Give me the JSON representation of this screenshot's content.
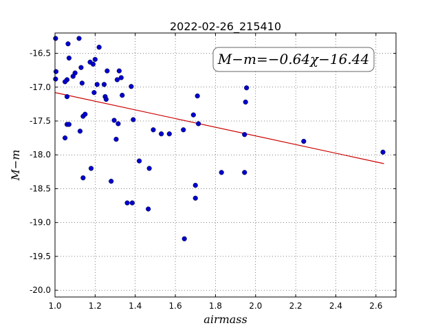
{
  "chart_data": {
    "type": "scatter",
    "title": "2022-02-26_215410",
    "xlabel": "airmass",
    "ylabel": "M−m",
    "xlim": [
      1.0,
      2.7
    ],
    "ylim": [
      -16.2,
      -20.1
    ],
    "y_inverted": true,
    "grid": true,
    "x_ticks": [
      "1.0",
      "1.2",
      "1.4",
      "1.6",
      "1.8",
      "2.0",
      "2.2",
      "2.4",
      "2.6"
    ],
    "y_ticks": [
      "-16.5",
      "-17.0",
      "-17.5",
      "-18.0",
      "-18.5",
      "-19.0",
      "-19.5",
      "-20.0"
    ],
    "annotation": "M−m=−0.64χ−16.44",
    "annotation_placement": "top-right",
    "fit_line": {
      "slope": -0.64,
      "intercept": -16.44,
      "x_range": [
        1.0,
        2.64
      ],
      "color": "#cc0000"
    },
    "point_color": "#0000cc",
    "points": [
      [
        1.003,
        -16.28
      ],
      [
        1.005,
        -16.77
      ],
      [
        1.003,
        -16.88
      ],
      [
        1.06,
        -16.89
      ],
      [
        1.05,
        -16.92
      ],
      [
        1.07,
        -16.57
      ],
      [
        1.065,
        -16.36
      ],
      [
        1.09,
        -16.84
      ],
      [
        1.1,
        -16.79
      ],
      [
        1.12,
        -16.28
      ],
      [
        1.13,
        -16.71
      ],
      [
        1.135,
        -16.94
      ],
      [
        1.06,
        -17.14
      ],
      [
        1.05,
        -17.75
      ],
      [
        1.06,
        -17.55
      ],
      [
        1.07,
        -17.55
      ],
      [
        1.14,
        -17.43
      ],
      [
        1.15,
        -17.4
      ],
      [
        1.125,
        -17.65
      ],
      [
        1.175,
        -16.63
      ],
      [
        1.19,
        -16.66
      ],
      [
        1.2,
        -16.59
      ],
      [
        1.22,
        -16.41
      ],
      [
        1.21,
        -16.96
      ],
      [
        1.195,
        -17.08
      ],
      [
        1.245,
        -16.96
      ],
      [
        1.25,
        -17.14
      ],
      [
        1.255,
        -17.18
      ],
      [
        1.26,
        -16.76
      ],
      [
        1.31,
        -16.89
      ],
      [
        1.32,
        -16.76
      ],
      [
        1.33,
        -16.86
      ],
      [
        1.335,
        -17.12
      ],
      [
        1.38,
        -16.99
      ],
      [
        1.295,
        -17.49
      ],
      [
        1.315,
        -17.54
      ],
      [
        1.305,
        -17.77
      ],
      [
        1.39,
        -17.48
      ],
      [
        1.42,
        -18.09
      ],
      [
        1.14,
        -18.34
      ],
      [
        1.18,
        -18.2
      ],
      [
        1.28,
        -18.39
      ],
      [
        1.36,
        -18.71
      ],
      [
        1.385,
        -18.71
      ],
      [
        1.465,
        -18.8
      ],
      [
        1.47,
        -18.2
      ],
      [
        1.49,
        -17.63
      ],
      [
        1.53,
        -17.69
      ],
      [
        1.57,
        -17.69
      ],
      [
        1.64,
        -17.63
      ],
      [
        1.69,
        -17.41
      ],
      [
        1.71,
        -17.13
      ],
      [
        1.715,
        -17.54
      ],
      [
        1.645,
        -19.24
      ],
      [
        1.7,
        -18.45
      ],
      [
        1.7,
        -18.64
      ],
      [
        1.83,
        -18.26
      ],
      [
        1.945,
        -18.26
      ],
      [
        1.945,
        -17.7
      ],
      [
        1.95,
        -17.22
      ],
      [
        1.955,
        -17.01
      ],
      [
        2.24,
        -17.8
      ],
      [
        2.635,
        -17.96
      ]
    ]
  }
}
